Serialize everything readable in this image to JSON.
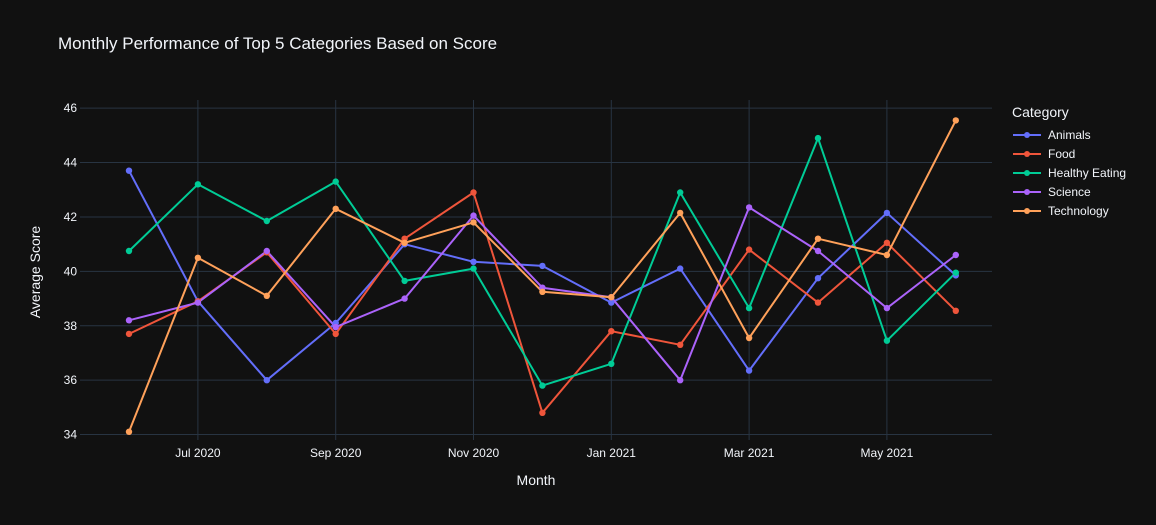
{
  "chart_data": {
    "type": "line",
    "title": "Monthly Performance of Top 5 Categories Based on Score",
    "xlabel": "Month",
    "ylabel": "Average Score",
    "x": [
      "2020-06",
      "2020-07",
      "2020-08",
      "2020-09",
      "2020-10",
      "2020-11",
      "2020-12",
      "2021-01",
      "2021-02",
      "2021-03",
      "2021-04",
      "2021-05",
      "2021-06"
    ],
    "x_ticks": [
      {
        "x": "2020-07",
        "label": "Jul 2020"
      },
      {
        "x": "2020-09",
        "label": "Sep 2020"
      },
      {
        "x": "2020-11",
        "label": "Nov 2020"
      },
      {
        "x": "2021-01",
        "label": "Jan 2021"
      },
      {
        "x": "2021-03",
        "label": "Mar 2021"
      },
      {
        "x": "2021-05",
        "label": "May 2021"
      }
    ],
    "y_ticks": [
      34,
      36,
      38,
      40,
      42,
      44,
      46
    ],
    "ylim": [
      33.8,
      46.3
    ],
    "grid": true,
    "legend_title": "Category",
    "legend_position": "right",
    "series": [
      {
        "name": "Animals",
        "color": "#636efa",
        "values": [
          43.7,
          38.9,
          36.0,
          38.1,
          41.0,
          40.35,
          40.2,
          38.85,
          40.1,
          36.35,
          39.75,
          42.15,
          39.85
        ]
      },
      {
        "name": "Food",
        "color": "#ef553b",
        "values": [
          37.7,
          38.9,
          40.7,
          37.7,
          41.2,
          42.9,
          34.8,
          37.8,
          37.3,
          40.8,
          38.85,
          41.05,
          38.55
        ]
      },
      {
        "name": "Healthy Eating",
        "color": "#00cc96",
        "values": [
          40.75,
          43.2,
          41.85,
          43.3,
          39.65,
          40.1,
          35.8,
          36.6,
          42.9,
          38.65,
          44.9,
          37.45,
          39.95
        ]
      },
      {
        "name": "Science",
        "color": "#ab63fa",
        "values": [
          38.2,
          38.85,
          40.75,
          37.95,
          39.0,
          42.05,
          39.4,
          39.05,
          36.0,
          42.35,
          40.75,
          38.65,
          40.6
        ]
      },
      {
        "name": "Technology",
        "color": "#ffa15a",
        "values": [
          34.1,
          40.5,
          39.1,
          42.3,
          41.05,
          41.8,
          39.25,
          39.05,
          42.15,
          37.55,
          41.2,
          40.6,
          45.55
        ]
      }
    ]
  }
}
